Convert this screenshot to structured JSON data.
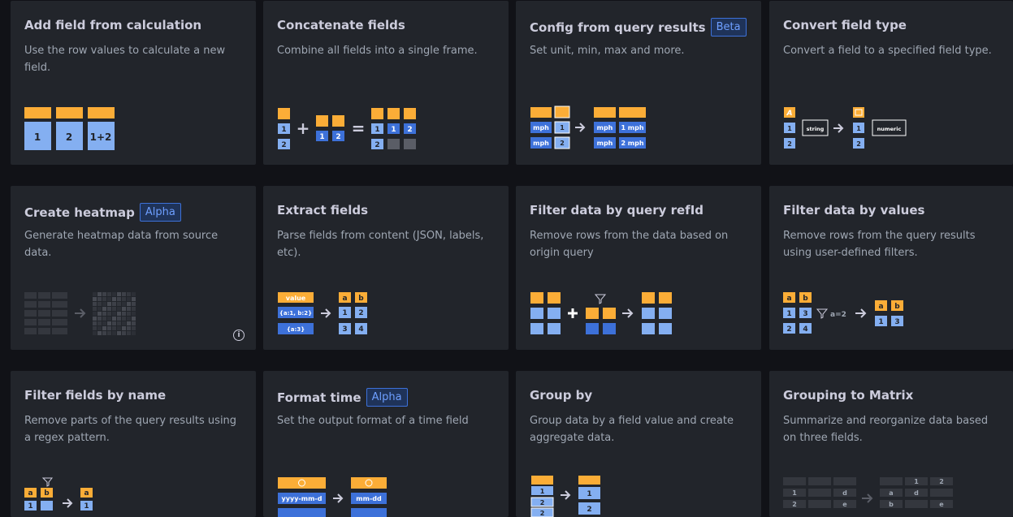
{
  "cards": [
    {
      "title": "Add field from calculation",
      "badge": "",
      "desc": "Use the row values to calculate a new field.",
      "illus": {
        "cells": [
          "1",
          "2",
          "1+2"
        ]
      }
    },
    {
      "title": "Concatenate fields",
      "badge": "",
      "desc": "Combine all fields into a single frame.",
      "illus": {
        "a": [
          "1",
          "2"
        ],
        "b": [
          "1",
          "2"
        ],
        "c": [
          "1",
          "1",
          "2",
          "2"
        ],
        "plus": "+",
        "eq": "="
      }
    },
    {
      "title": "Config from query results",
      "badge": "Beta",
      "desc": "Set unit, min, max and more.",
      "illus": {
        "left": [
          "mph",
          "1",
          "mph",
          "2"
        ],
        "right": [
          "mph",
          "1 mph",
          "mph",
          "2 mph"
        ]
      }
    },
    {
      "title": "Convert field type",
      "badge": "",
      "desc": "Convert a field to a specified field type.",
      "illus": {
        "nums": [
          "1",
          "2",
          "1",
          "2"
        ],
        "from": "string",
        "to": "numeric"
      }
    },
    {
      "title": "Create heatmap",
      "badge": "Alpha",
      "desc": "Generate heatmap data from source data.",
      "info": "i"
    },
    {
      "title": "Extract fields",
      "badge": "",
      "desc": "Parse fields from content (JSON, labels, etc).",
      "illus": {
        "header": "value",
        "rows": [
          "{a:1, b:2}",
          "{a:3}"
        ],
        "cols": [
          "a",
          "b"
        ],
        "vals": [
          "1",
          "2",
          "3",
          "4"
        ]
      }
    },
    {
      "title": "Filter data by query refId",
      "badge": "",
      "desc": "Remove rows from the data based on origin query"
    },
    {
      "title": "Filter data by values",
      "badge": "",
      "desc": "Remove rows from the query results using user-defined filters.",
      "illus": {
        "cols": [
          "a",
          "b"
        ],
        "vals": [
          "1",
          "3",
          "2",
          "4"
        ],
        "filter": "a=2",
        "outcols": [
          "a",
          "b"
        ],
        "outvals": [
          "1",
          "3"
        ]
      }
    },
    {
      "title": "Filter fields by name",
      "badge": "",
      "desc": "Remove parts of the query results using a regex pattern.",
      "illus": {
        "cols": [
          "a",
          "b"
        ],
        "vals": [
          "1"
        ],
        "outcol": "a",
        "outval": "1"
      }
    },
    {
      "title": "Format time",
      "badge": "Alpha",
      "desc": "Set the output format of a time field",
      "illus": {
        "from": "yyyy-mm-d",
        "to": "mm-dd"
      }
    },
    {
      "title": "Group by",
      "badge": "",
      "desc": "Group data by a field value and create aggregate data.",
      "illus": {
        "left": [
          "1",
          "2",
          "2"
        ],
        "right": [
          "1",
          "2"
        ]
      }
    },
    {
      "title": "Grouping to Matrix",
      "badge": "",
      "desc": "Summarize and reorganize data based on three fields.",
      "illus": {
        "lrows": [
          [
            "1",
            "",
            "d"
          ],
          [
            "2",
            "",
            "e"
          ]
        ],
        "rhead": [
          "1",
          "2"
        ],
        "rrows": [
          [
            "a",
            "d",
            ""
          ],
          [
            "b",
            "",
            "e"
          ]
        ]
      }
    }
  ],
  "colors": {
    "orange": "#fbad37",
    "blue": "#84aff1",
    "darkblue": "#3d71d9",
    "card": "#22252b",
    "bg": "#111217"
  }
}
